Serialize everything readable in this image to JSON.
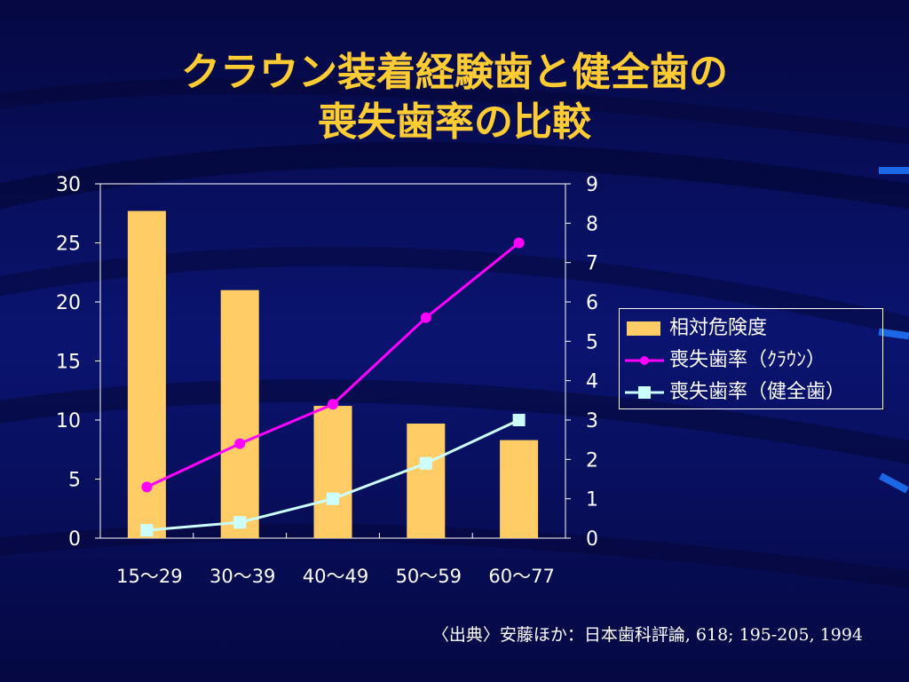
{
  "slide": {
    "title_line1": "クラウン装着経験歯と健全歯の",
    "title_line2": "喪失歯率の比較",
    "source": "〈出典〉安藤ほか：日本歯科評論, 618; 195-205, 1994",
    "colors": {
      "background": "#060a55",
      "title": "#ffcc33",
      "text": "#ffffff"
    }
  },
  "chart_data": {
    "type": "bar",
    "categories": [
      "15～29",
      "30～39",
      "40～49",
      "50～59",
      "60～77"
    ],
    "y_left": {
      "ticks": [
        "0",
        "5",
        "10",
        "15",
        "20",
        "25",
        "30"
      ],
      "range": [
        0,
        30
      ]
    },
    "y_right": {
      "ticks": [
        "0",
        "1",
        "2",
        "3",
        "4",
        "5",
        "6",
        "7",
        "8",
        "9"
      ],
      "range": [
        0,
        9
      ]
    },
    "grid": false,
    "legend_position": "right",
    "series": [
      {
        "name": "相対危険度",
        "type": "bar",
        "axis": "left",
        "color": "#ffcc66",
        "values": [
          27.7,
          21.0,
          11.2,
          9.7,
          8.3
        ]
      },
      {
        "name": "喪失歯率（ｸﾗｳﾝ）",
        "type": "line",
        "axis": "right",
        "color": "#ff00ff",
        "marker": "circle",
        "values": [
          1.3,
          2.4,
          3.4,
          5.6,
          7.5
        ]
      },
      {
        "name": "喪失歯率（健全歯）",
        "type": "line",
        "axis": "right",
        "color": "#ccffff",
        "marker": "square",
        "values": [
          0.2,
          0.4,
          1.0,
          1.9,
          3.0
        ]
      }
    ]
  }
}
